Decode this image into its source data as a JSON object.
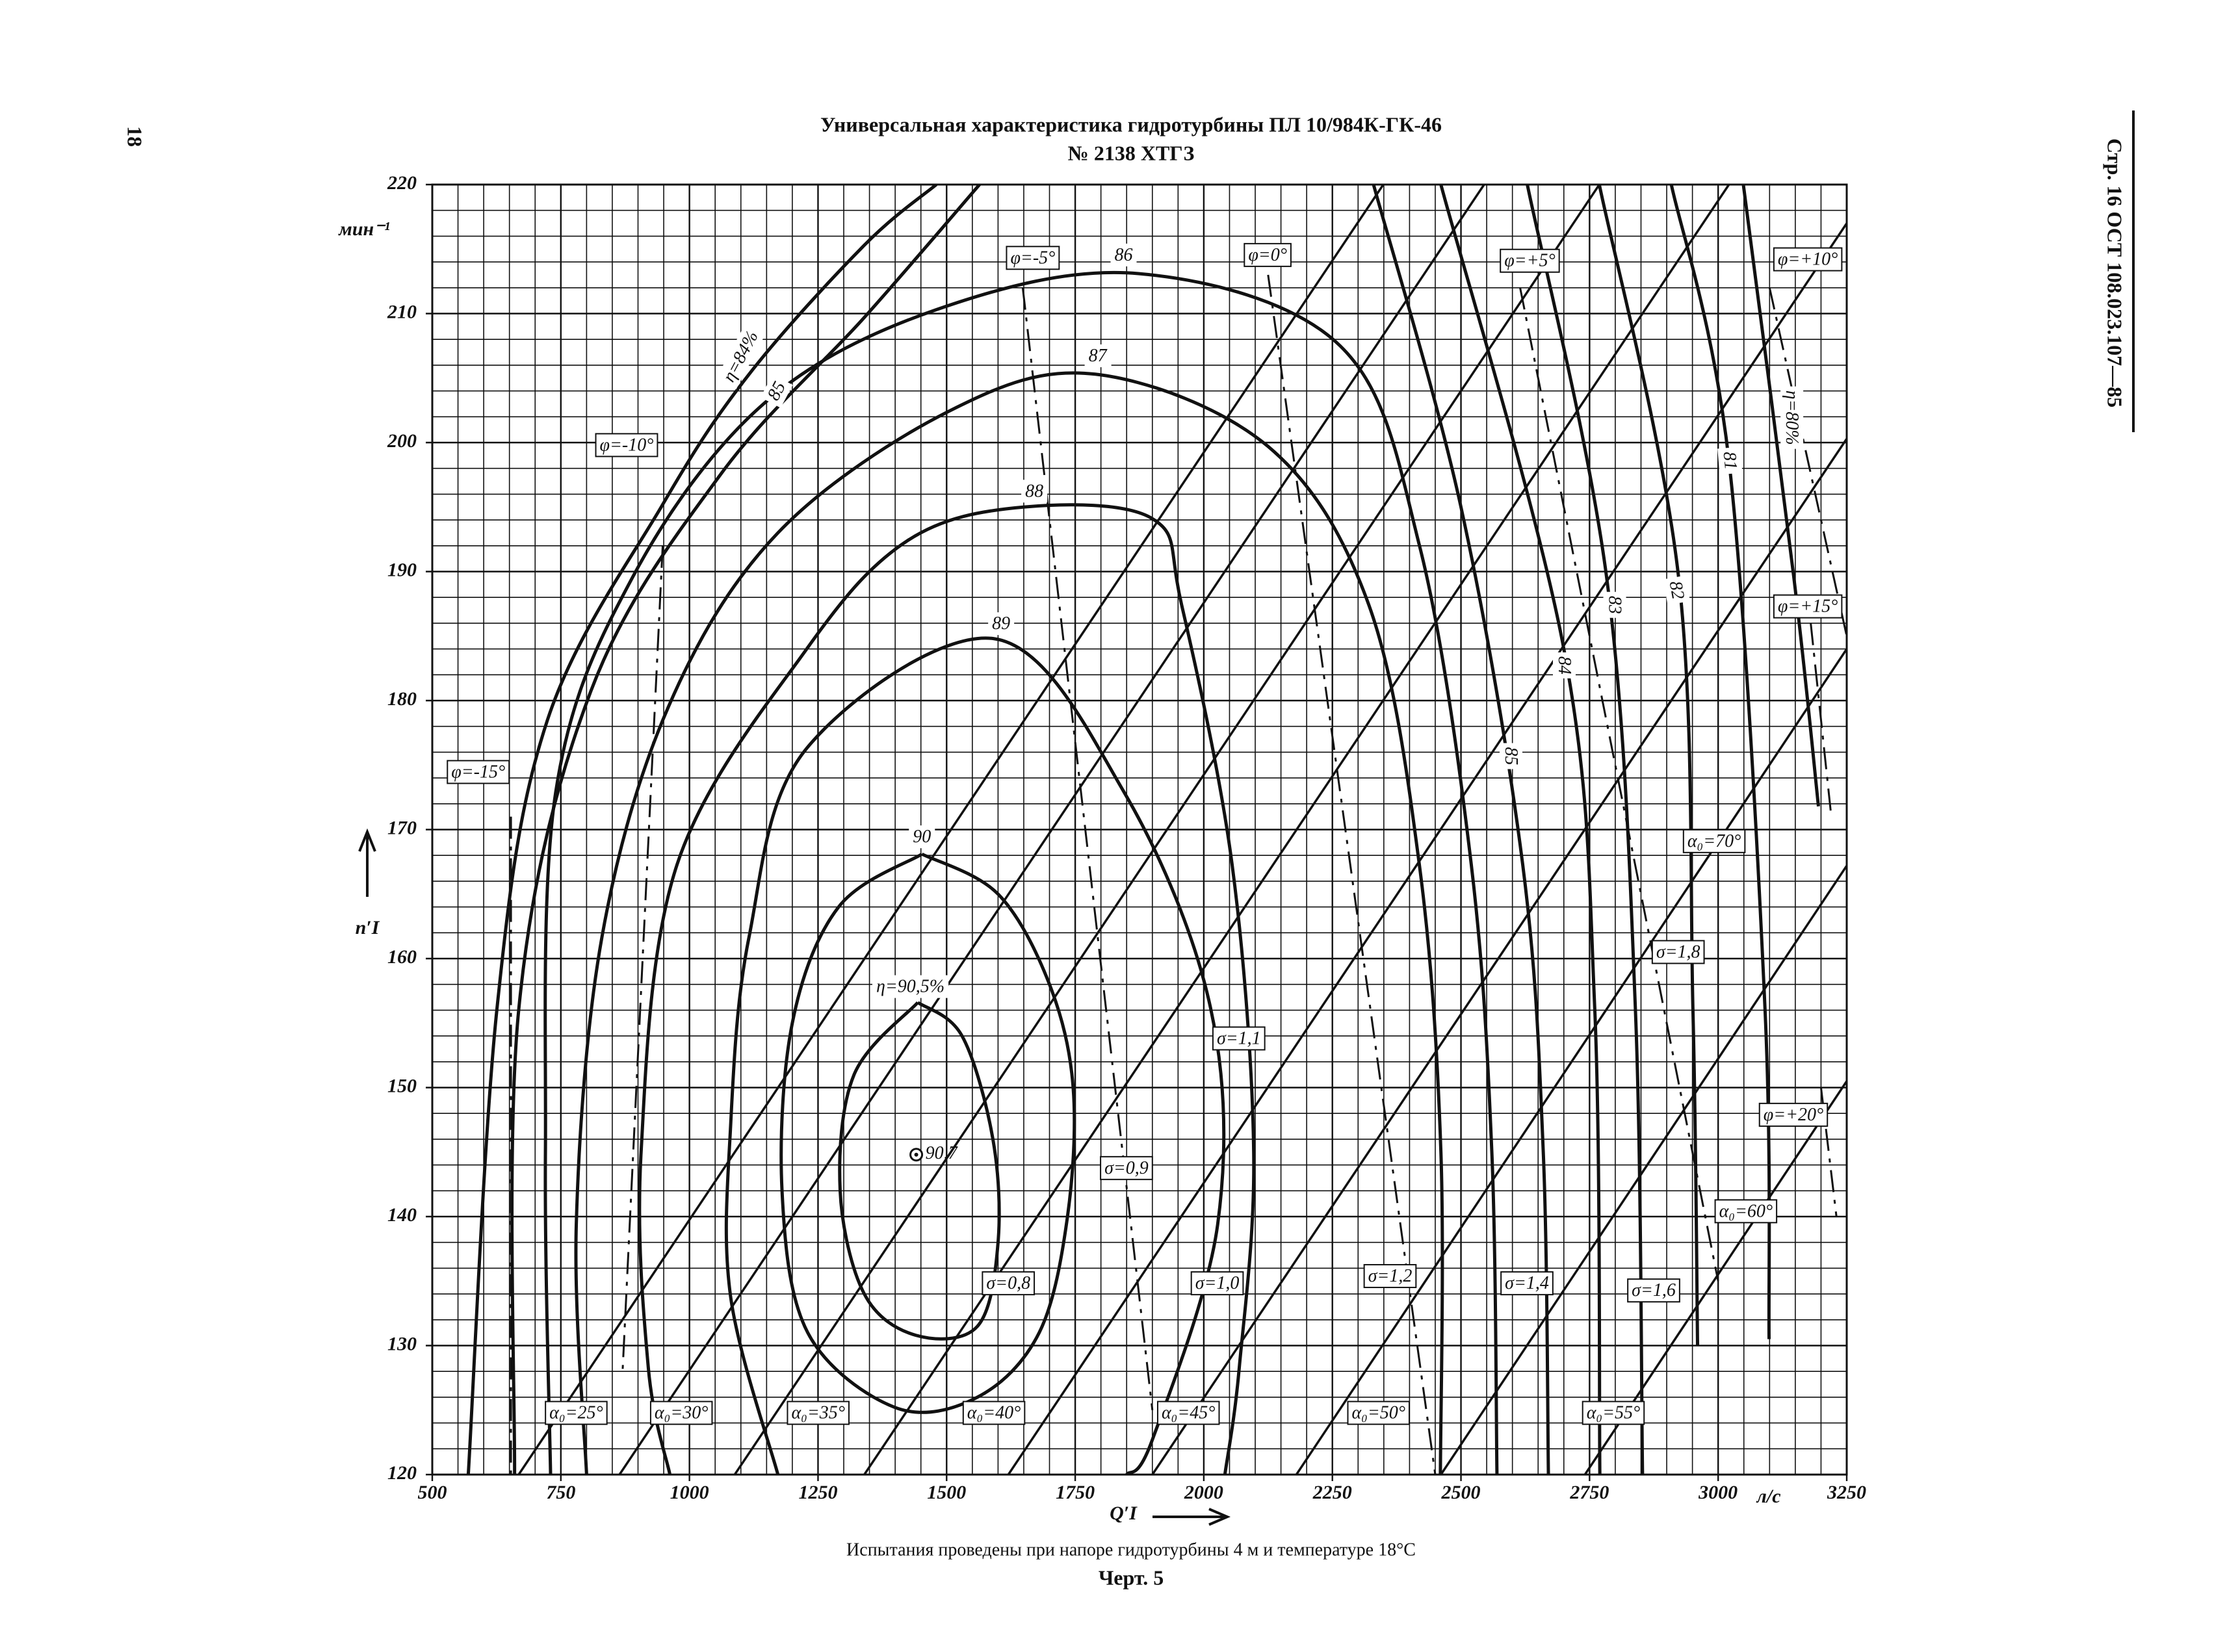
{
  "page": {
    "number": "18",
    "header": "Стр. 16 ОСТ 108.023.107—85",
    "footnote": "Испытания проведены при напоре гидротурбины 4 м и температуре 18°С",
    "figure": "Черт. 5"
  },
  "chart_data": {
    "type": "contour",
    "title": "Универсальная характеристика гидротурбины ПЛ 10/984К-ГК-46",
    "subtitle": "№ 2138 ХТГЗ",
    "x_label": "Q′I",
    "x_unit": "л/с",
    "y_label": "n′I",
    "y_unit": "мин⁻¹",
    "color": "#111111",
    "grid": true,
    "xlim": [
      500,
      3250
    ],
    "ylim": [
      120,
      220
    ],
    "xticks": [
      500,
      750,
      1000,
      1250,
      1500,
      1750,
      2000,
      2250,
      2500,
      2750,
      3000,
      3250
    ],
    "yticks": [
      120,
      130,
      140,
      150,
      160,
      170,
      180,
      190,
      200,
      210,
      220
    ],
    "xminor": [
      550,
      600,
      650,
      700,
      800,
      850,
      900,
      950,
      1050,
      1100,
      1150,
      1200,
      1300,
      1350,
      1400,
      1450,
      1550,
      1600,
      1650,
      1700,
      1800,
      1850,
      1900,
      1950,
      2050,
      2100,
      2150,
      2200,
      2300,
      2350,
      2400,
      2450,
      2550,
      2600,
      2650,
      2700,
      2800,
      2850,
      2900,
      2950,
      3050,
      3100,
      3150,
      3200
    ],
    "yminor": [
      122,
      124,
      126,
      128,
      132,
      134,
      136,
      138,
      142,
      144,
      146,
      148,
      152,
      154,
      156,
      158,
      162,
      164,
      166,
      168,
      172,
      174,
      176,
      178,
      182,
      184,
      186,
      188,
      192,
      194,
      196,
      198,
      202,
      204,
      206,
      208,
      212,
      214,
      216,
      218
    ],
    "series": [
      {
        "name": "η=84%",
        "style": "efficiency",
        "x": [
          570,
          626,
          724,
          948,
          1116,
          1340,
          1480
        ],
        "y": [
          120,
          156.2,
          178.5,
          195.2,
          205.3,
          215.3,
          220
        ]
      },
      {
        "name": "85",
        "style": "efficiency",
        "x": [
          660,
          668,
          808,
          1060,
          1340,
          1564,
          null,
          2330,
          2500,
          2620,
          2660,
          2670
        ],
        "y": [
          120,
          156,
          180.7,
          197.5,
          209.7,
          220,
          null,
          220,
          195,
          167.3,
          145,
          120
        ]
      },
      {
        "name": "86",
        "style": "efficiency",
        "x": [
          730,
          720,
          740,
          890,
          1144,
          1480,
          1873,
          2265,
          2420,
          2520,
          2560,
          2570
        ],
        "y": [
          120,
          145,
          172.9,
          189.6,
          203,
          210.3,
          213.1,
          207.5,
          191.9,
          167.3,
          145,
          120
        ]
      },
      {
        "name": "87",
        "style": "efficiency",
        "x": [
          800,
          780,
          830,
          960,
          1172,
          1508,
          1789,
          2125,
          2321,
          2419,
          2461,
          2460
        ],
        "y": [
          120,
          139.4,
          161.7,
          179.6,
          193,
          202.5,
          205.3,
          199.7,
          187.4,
          167.3,
          145,
          120
        ]
      },
      {
        "name": "88",
        "style": "efficiency",
        "x": [
          962,
          920,
          906,
          976,
          1228,
          1424,
          1649,
          1900,
          1957,
          2055,
          2097,
          2069,
          2041
        ],
        "y": [
          120,
          128.3,
          145,
          167.3,
          184,
          192.4,
          195,
          194.1,
          187.4,
          167.3,
          145,
          128.3,
          120
        ]
      },
      {
        "name": "89",
        "style": "efficiency",
        "x": [
          1172,
          1080,
          1080,
          1116,
          1228,
          1592,
          1845,
          2013,
          2027,
          1900,
          1850
        ],
        "y": [
          120,
          133.8,
          147,
          161.7,
          176.3,
          184.8,
          172.9,
          156.2,
          139.4,
          122.7,
          120
        ]
      },
      {
        "name": "90",
        "style": "efficiency",
        "x": [
          1452,
          1600,
          1700,
          1746,
          1735,
          1680,
          1560,
          1400,
          1230,
          1180,
          1200,
          1290,
          1452
        ],
        "y": [
          168.1,
          165,
          158,
          150,
          140,
          131,
          126,
          125.2,
          131,
          142,
          155,
          164,
          168.1
        ]
      },
      {
        "name": "η=90,5%",
        "style": "efficiency",
        "x": [
          1444,
          1530,
          1590,
          1600,
          1560,
          1440,
          1340,
          1293,
          1320,
          1444
        ],
        "y": [
          156.6,
          154,
          146,
          138,
          131.5,
          130.8,
          134,
          142,
          151,
          156.6
        ]
      },
      {
        "name": "84",
        "style": "efficiency",
        "x": [
          2461,
          2700,
          2760,
          2770
        ],
        "y": [
          220,
          184,
          156.2,
          120
        ]
      },
      {
        "name": "83",
        "style": "efficiency",
        "x": [
          2629,
          2783,
          2839,
          2853
        ],
        "y": [
          220,
          189.6,
          156.2,
          120
        ]
      },
      {
        "name": "82",
        "style": "efficiency",
        "x": [
          2769,
          2923,
          2951,
          2960
        ],
        "y": [
          220,
          189.6,
          156,
          130
        ]
      },
      {
        "name": "81",
        "style": "efficiency",
        "x": [
          2909,
          3021,
          3091,
          3099
        ],
        "y": [
          220,
          198.6,
          156.2,
          130.5
        ]
      },
      {
        "name": "η=80%",
        "style": "efficiency",
        "x": [
          3049,
          3147,
          3195
        ],
        "y": [
          220,
          189.6,
          171.8
        ]
      },
      {
        "name": "α₀=25°",
        "style": "opening",
        "x": [
          668,
          2349
        ],
        "y": [
          120,
          220
        ]
      },
      {
        "name": "α₀=30°",
        "style": "opening",
        "x": [
          864,
          2545
        ],
        "y": [
          120,
          220
        ]
      },
      {
        "name": "α₀=35°",
        "style": "opening",
        "x": [
          1088,
          2769
        ],
        "y": [
          120,
          220
        ]
      },
      {
        "name": "α₀=40°",
        "style": "opening",
        "x": [
          1340,
          3021
        ],
        "y": [
          120,
          220
        ]
      },
      {
        "name": "α₀=45°",
        "style": "opening",
        "x": [
          1620,
          3250
        ],
        "y": [
          120,
          217
        ]
      },
      {
        "name": "α₀=50°",
        "style": "opening",
        "x": [
          1900,
          3250
        ],
        "y": [
          120,
          200.3
        ]
      },
      {
        "name": "α₀=55°",
        "style": "opening",
        "x": [
          2180,
          3250
        ],
        "y": [
          120,
          184
        ]
      },
      {
        "name": "α₀=60°",
        "style": "opening",
        "x": [
          2461,
          3250
        ],
        "y": [
          120,
          167.2
        ]
      },
      {
        "name": "α₀=70°",
        "style": "opening",
        "x": [
          2741,
          3250
        ],
        "y": [
          120,
          150.5
        ]
      },
      {
        "name": "φ=-15°",
        "style": "blade",
        "x": [
          653,
          653
        ],
        "y": [
          171,
          120
        ]
      },
      {
        "name": "φ=-10°",
        "style": "blade",
        "x": [
          948,
          870
        ],
        "y": [
          192,
          128
        ]
      },
      {
        "name": "φ=-5°",
        "style": "blade",
        "x": [
          1648,
          1900
        ],
        "y": [
          212,
          125
        ]
      },
      {
        "name": "φ=0°",
        "style": "blade",
        "x": [
          2125,
          2450
        ],
        "y": [
          213,
          120
        ]
      },
      {
        "name": "φ=+5°",
        "style": "blade",
        "x": [
          2615,
          3000
        ],
        "y": [
          212,
          135
        ]
      },
      {
        "name": "φ=+10°",
        "style": "blade",
        "x": [
          3100,
          3250
        ],
        "y": [
          212,
          185
        ]
      },
      {
        "name": "φ=+15°",
        "style": "blade",
        "x": [
          3180,
          3220
        ],
        "y": [
          186,
          171
        ]
      },
      {
        "name": "φ=+20°",
        "style": "blade",
        "x": [
          3200,
          3230
        ],
        "y": [
          150,
          140
        ]
      }
    ],
    "annotations": [
      "σ=0,8",
      "σ=0,9",
      "σ=1,0",
      "σ=1,1",
      "σ=1,2",
      "σ=1,4",
      "σ=1,6",
      "σ=1,8"
    ],
    "optimum": {
      "x": 1441,
      "y": 144.8,
      "efficiency": 90.7,
      "efficiency_label": "90,7"
    }
  }
}
